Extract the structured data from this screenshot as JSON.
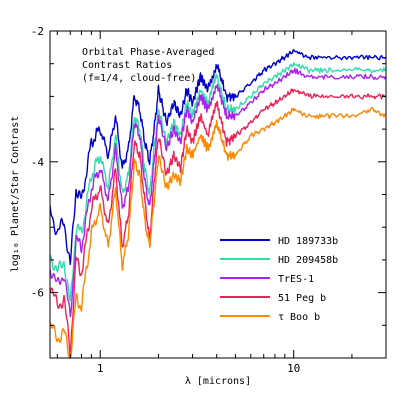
{
  "chart_data": {
    "type": "line",
    "title": "",
    "annotation": [
      "Orbital Phase-Averaged",
      "Contrast Ratios",
      "(f=1/4, cloud-free)"
    ],
    "xlabel": "λ [microns]",
    "ylabel": "log₁₀ Planet/Star Contrast",
    "x_scale": "log",
    "xlim": [
      0.55,
      30
    ],
    "ylim": [
      -7,
      -2
    ],
    "x_ticks": [
      1,
      10
    ],
    "x_tick_labels": [
      "1",
      "10"
    ],
    "y_ticks": [
      -6,
      -4,
      -2
    ],
    "y_tick_labels": [
      "-6",
      "-4",
      "-2"
    ],
    "grid": false,
    "legend_position": "lower-right",
    "x": [
      0.55,
      0.6,
      0.65,
      0.7,
      0.75,
      0.8,
      0.9,
      1.0,
      1.1,
      1.2,
      1.3,
      1.4,
      1.5,
      1.6,
      1.7,
      1.8,
      1.9,
      2.0,
      2.2,
      2.4,
      2.6,
      2.8,
      3.0,
      3.3,
      3.6,
      4.0,
      4.5,
      5.0,
      6.0,
      7.0,
      8.0,
      9.0,
      10.0,
      12.0,
      15.0,
      20.0,
      25.0,
      30.0
    ],
    "series": [
      {
        "name": "HD 189733b",
        "color": "#0000cc",
        "values": [
          -4.7,
          -5.1,
          -4.9,
          -5.6,
          -4.4,
          -4.6,
          -3.7,
          -3.5,
          -3.9,
          -3.3,
          -4.1,
          -3.8,
          -3.0,
          -3.2,
          -3.7,
          -4.0,
          -3.5,
          -2.9,
          -3.4,
          -3.1,
          -3.3,
          -2.9,
          -3.1,
          -2.7,
          -2.9,
          -2.5,
          -3.0,
          -3.0,
          -2.8,
          -2.6,
          -2.5,
          -2.4,
          -2.3,
          -2.4,
          -2.4,
          -2.4,
          -2.4,
          -2.4
        ]
      },
      {
        "name": "HD 209458b",
        "color": "#33ddaa",
        "values": [
          -5.4,
          -5.7,
          -5.5,
          -6.2,
          -5.0,
          -5.1,
          -4.2,
          -3.9,
          -4.4,
          -3.6,
          -4.5,
          -4.2,
          -3.3,
          -3.5,
          -4.1,
          -4.5,
          -3.8,
          -3.2,
          -3.7,
          -3.4,
          -3.6,
          -3.1,
          -3.3,
          -2.9,
          -3.1,
          -2.7,
          -3.2,
          -3.2,
          -3.0,
          -2.8,
          -2.7,
          -2.6,
          -2.5,
          -2.6,
          -2.6,
          -2.6,
          -2.6,
          -2.6
        ]
      },
      {
        "name": "TrES-1",
        "color": "#aa22ee",
        "values": [
          -5.6,
          -5.9,
          -5.7,
          -6.4,
          -5.2,
          -5.3,
          -4.4,
          -4.1,
          -4.6,
          -3.8,
          -4.7,
          -4.4,
          -3.4,
          -3.6,
          -4.3,
          -4.7,
          -4.0,
          -3.3,
          -3.8,
          -3.5,
          -3.7,
          -3.2,
          -3.4,
          -3.0,
          -3.2,
          -2.8,
          -3.3,
          -3.3,
          -3.1,
          -2.9,
          -2.8,
          -2.7,
          -2.6,
          -2.7,
          -2.7,
          -2.7,
          -2.7,
          -2.7
        ]
      },
      {
        "name": "51 Peg b",
        "color": "#ee2255",
        "values": [
          -5.9,
          -6.2,
          -6.1,
          -6.9,
          -5.5,
          -5.7,
          -4.7,
          -4.4,
          -5.0,
          -4.1,
          -5.3,
          -4.8,
          -3.7,
          -3.9,
          -4.6,
          -5.2,
          -4.3,
          -3.6,
          -4.2,
          -3.9,
          -4.1,
          -3.5,
          -3.7,
          -3.3,
          -3.6,
          -3.1,
          -3.7,
          -3.6,
          -3.4,
          -3.2,
          -3.1,
          -3.0,
          -2.9,
          -3.0,
          -3.0,
          -3.0,
          -3.0,
          -3.0
        ]
      },
      {
        "name": "τ Boo b",
        "color": "#ff8800",
        "values": [
          -6.5,
          -6.7,
          -6.6,
          -7.0,
          -6.1,
          -6.2,
          -5.1,
          -4.7,
          -5.3,
          -4.4,
          -5.6,
          -5.1,
          -4.0,
          -4.2,
          -4.9,
          -5.3,
          -4.6,
          -3.9,
          -4.4,
          -4.2,
          -4.3,
          -3.8,
          -3.9,
          -3.6,
          -3.8,
          -3.4,
          -3.9,
          -3.9,
          -3.6,
          -3.5,
          -3.4,
          -3.3,
          -3.2,
          -3.3,
          -3.3,
          -3.3,
          -3.2,
          -3.3
        ]
      }
    ]
  }
}
